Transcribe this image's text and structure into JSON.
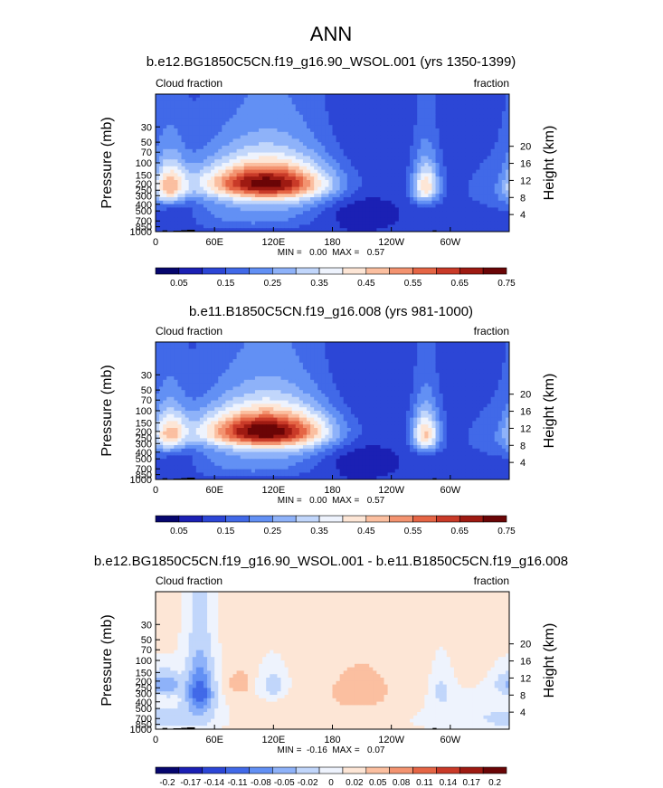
{
  "figure": {
    "title": "ANN"
  },
  "colorbar_cmap": [
    "#06066e",
    "#1b20b4",
    "#2c46d6",
    "#4169e8",
    "#6290f4",
    "#8eb2f9",
    "#c1d6fb",
    "#eef3fd",
    "#fde6d6",
    "#fbbfa0",
    "#f39370",
    "#e56545",
    "#c93a28",
    "#9e1a12",
    "#6a0506"
  ],
  "chart_data": [
    {
      "type": "heatmap",
      "title": "b.e12.BG1850C5CN.f19_g16.90_WSOL.001 (yrs 1350-1399)",
      "left_label": "Cloud fraction",
      "right_label": "fraction",
      "ylabel": "Pressure (mb)",
      "ylabel_right": "Height (km)",
      "x_ticks": [
        "0",
        "60E",
        "120E",
        "180",
        "120W",
        "60W"
      ],
      "y_ticks": [
        "1000",
        "850",
        "700",
        "500",
        "400",
        "300",
        "250",
        "200",
        "150",
        "100",
        "70",
        "50",
        "30"
      ],
      "y_ticks_right": [
        "4",
        "8",
        "12",
        "16",
        "20"
      ],
      "stats": "MIN =   0.00  MAX =   0.57",
      "colorbar_labels": [
        "0.05",
        "0.15",
        "0.25",
        "0.35",
        "0.45",
        "0.55",
        "0.65",
        "0.75"
      ],
      "levels": [
        0,
        0.05,
        0.1,
        0.15,
        0.2,
        0.25,
        0.3,
        0.35,
        0.4,
        0.45,
        0.5,
        0.55,
        0.6,
        0.65,
        0.7,
        0.75
      ],
      "min": 0.0,
      "max": 0.57,
      "background_value": 0.11,
      "features": [
        {
          "lon": 200,
          "p": 450,
          "dlon": 28,
          "dp": 300,
          "value": -0.08
        },
        {
          "lon": 110,
          "p": 190,
          "dlon": 45,
          "dp": 80,
          "value": 0.42
        },
        {
          "lon": 120,
          "p": 260,
          "dlon": 55,
          "dp": 160,
          "value": 0.22
        },
        {
          "lon": 15,
          "p": 220,
          "dlon": 12,
          "dp": 110,
          "value": 0.3
        },
        {
          "lon": 275,
          "p": 220,
          "dlon": 10,
          "dp": 110,
          "value": 0.32
        },
        {
          "lon": 25,
          "p": 500,
          "dlon": 12,
          "dp": 250,
          "value": -0.06
        },
        {
          "lon": 100,
          "p": 650,
          "dlon": 60,
          "dp": 200,
          "value": 0.1
        },
        {
          "lon": 345,
          "p": 300,
          "dlon": 30,
          "dp": 200,
          "value": 0.06
        },
        {
          "lon": 330,
          "p": 550,
          "dlon": 30,
          "dp": 150,
          "value": -0.03
        }
      ],
      "topography": [
        {
          "lon0": 7,
          "lon1": 12,
          "p_top": 960
        },
        {
          "lon0": 12,
          "lon1": 18,
          "p_top": 985
        },
        {
          "lon0": 18,
          "lon1": 26,
          "p_top": 970
        },
        {
          "lon0": 26,
          "lon1": 32,
          "p_top": 955
        },
        {
          "lon0": 32,
          "lon1": 40,
          "p_top": 940
        },
        {
          "lon0": 62,
          "lon1": 65,
          "p_top": 990
        },
        {
          "lon0": 100,
          "lon1": 114,
          "p_top": 990
        },
        {
          "lon0": 123,
          "lon1": 130,
          "p_top": 990
        },
        {
          "lon0": 282,
          "lon1": 286,
          "p_top": 960
        },
        {
          "lon0": 286,
          "lon1": 292,
          "p_top": 985
        },
        {
          "lon0": 292,
          "lon1": 310,
          "p_top": 990
        }
      ]
    },
    {
      "type": "heatmap",
      "title": "b.e11.B1850C5CN.f19_g16.008 (yrs 981-1000)",
      "left_label": "Cloud fraction",
      "right_label": "fraction",
      "ylabel": "Pressure (mb)",
      "ylabel_right": "Height (km)",
      "x_ticks": [
        "0",
        "60E",
        "120E",
        "180",
        "120W",
        "60W"
      ],
      "y_ticks": [
        "1000",
        "850",
        "700",
        "500",
        "400",
        "300",
        "250",
        "200",
        "150",
        "100",
        "70",
        "50",
        "30"
      ],
      "y_ticks_right": [
        "4",
        "8",
        "12",
        "16",
        "20"
      ],
      "stats": "MIN =   0.00  MAX =   0.57",
      "colorbar_labels": [
        "0.05",
        "0.15",
        "0.25",
        "0.35",
        "0.45",
        "0.55",
        "0.65",
        "0.75"
      ],
      "levels": [
        0,
        0.05,
        0.1,
        0.15,
        0.2,
        0.25,
        0.3,
        0.35,
        0.4,
        0.45,
        0.5,
        0.55,
        0.6,
        0.65,
        0.7,
        0.75
      ],
      "min": 0.0,
      "max": 0.57,
      "background_value": 0.11,
      "features": [
        {
          "lon": 200,
          "p": 450,
          "dlon": 28,
          "dp": 300,
          "value": -0.08
        },
        {
          "lon": 110,
          "p": 190,
          "dlon": 45,
          "dp": 80,
          "value": 0.44
        },
        {
          "lon": 120,
          "p": 260,
          "dlon": 55,
          "dp": 160,
          "value": 0.22
        },
        {
          "lon": 15,
          "p": 220,
          "dlon": 12,
          "dp": 110,
          "value": 0.28
        },
        {
          "lon": 275,
          "p": 220,
          "dlon": 10,
          "dp": 110,
          "value": 0.34
        },
        {
          "lon": 25,
          "p": 500,
          "dlon": 12,
          "dp": 250,
          "value": -0.06
        },
        {
          "lon": 100,
          "p": 650,
          "dlon": 60,
          "dp": 200,
          "value": 0.1
        },
        {
          "lon": 345,
          "p": 300,
          "dlon": 30,
          "dp": 200,
          "value": 0.06
        },
        {
          "lon": 330,
          "p": 550,
          "dlon": 30,
          "dp": 150,
          "value": -0.03
        }
      ],
      "topography": [
        {
          "lon0": 7,
          "lon1": 12,
          "p_top": 960
        },
        {
          "lon0": 12,
          "lon1": 18,
          "p_top": 985
        },
        {
          "lon0": 18,
          "lon1": 26,
          "p_top": 970
        },
        {
          "lon0": 26,
          "lon1": 32,
          "p_top": 955
        },
        {
          "lon0": 32,
          "lon1": 40,
          "p_top": 940
        },
        {
          "lon0": 62,
          "lon1": 65,
          "p_top": 990
        },
        {
          "lon0": 100,
          "lon1": 114,
          "p_top": 990
        },
        {
          "lon0": 123,
          "lon1": 130,
          "p_top": 990
        },
        {
          "lon0": 282,
          "lon1": 286,
          "p_top": 960
        },
        {
          "lon0": 286,
          "lon1": 292,
          "p_top": 985
        },
        {
          "lon0": 292,
          "lon1": 310,
          "p_top": 990
        }
      ]
    },
    {
      "type": "heatmap",
      "title": "b.e12.BG1850C5CN.f19_g16.90_WSOL.001 - b.e11.B1850C5CN.f19_g16.008",
      "left_label": "Cloud fraction",
      "right_label": "fraction",
      "ylabel": "Pressure (mb)",
      "ylabel_right": "Height (km)",
      "x_ticks": [
        "0",
        "60E",
        "120E",
        "180",
        "120W",
        "60W"
      ],
      "y_ticks": [
        "1000",
        "850",
        "700",
        "500",
        "400",
        "300",
        "250",
        "200",
        "150",
        "100",
        "70",
        "50",
        "30"
      ],
      "y_ticks_right": [
        "4",
        "8",
        "12",
        "16",
        "20"
      ],
      "stats": "MIN =  -0.16  MAX =   0.07",
      "colorbar_labels": [
        "-0.2",
        "-0.17",
        "-0.14",
        "-0.11",
        "-0.08",
        "-0.05",
        "-0.02",
        "0",
        "0.02",
        "0.05",
        "0.08",
        "0.11",
        "0.14",
        "0.17",
        "0.2"
      ],
      "levels": [
        -0.23,
        -0.2,
        -0.17,
        -0.14,
        -0.11,
        -0.08,
        -0.05,
        -0.02,
        0,
        0.02,
        0.05,
        0.08,
        0.11,
        0.14,
        0.17,
        0.2
      ],
      "min": -0.16,
      "max": 0.07,
      "background_value": 0.005,
      "features": [
        {
          "lon": 45,
          "p": 280,
          "dlon": 9,
          "dp": 150,
          "value": -0.12
        },
        {
          "lon": 45,
          "p": 500,
          "dlon": 12,
          "dp": 280,
          "value": -0.03
        },
        {
          "lon": 15,
          "p": 230,
          "dlon": 8,
          "dp": 60,
          "value": -0.06
        },
        {
          "lon": 85,
          "p": 220,
          "dlon": 8,
          "dp": 60,
          "value": 0.035
        },
        {
          "lon": 120,
          "p": 230,
          "dlon": 10,
          "dp": 80,
          "value": -0.04
        },
        {
          "lon": 210,
          "p": 300,
          "dlon": 40,
          "dp": 250,
          "value": 0.02
        },
        {
          "lon": 330,
          "p": 650,
          "dlon": 50,
          "dp": 250,
          "value": -0.02
        },
        {
          "lon": 20,
          "p": 750,
          "dlon": 25,
          "dp": 180,
          "value": -0.03
        },
        {
          "lon": 360,
          "p": 220,
          "dlon": 10,
          "dp": 60,
          "value": -0.05
        },
        {
          "lon": 290,
          "p": 280,
          "dlon": 8,
          "dp": 120,
          "value": -0.03
        }
      ],
      "topography": [
        {
          "lon0": 7,
          "lon1": 12,
          "p_top": 960
        },
        {
          "lon0": 12,
          "lon1": 18,
          "p_top": 985
        },
        {
          "lon0": 18,
          "lon1": 26,
          "p_top": 970
        },
        {
          "lon0": 26,
          "lon1": 32,
          "p_top": 955
        },
        {
          "lon0": 32,
          "lon1": 40,
          "p_top": 940
        },
        {
          "lon0": 62,
          "lon1": 65,
          "p_top": 990
        },
        {
          "lon0": 100,
          "lon1": 114,
          "p_top": 990
        },
        {
          "lon0": 123,
          "lon1": 130,
          "p_top": 990
        },
        {
          "lon0": 282,
          "lon1": 286,
          "p_top": 960
        },
        {
          "lon0": 286,
          "lon1": 292,
          "p_top": 985
        },
        {
          "lon0": 292,
          "lon1": 310,
          "p_top": 990
        }
      ]
    }
  ]
}
